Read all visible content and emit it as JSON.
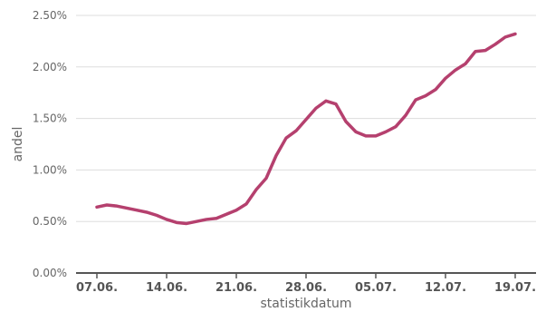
{
  "chart_data": {
    "type": "line",
    "xlabel": "statistikdatum",
    "ylabel": "andel",
    "ylim": [
      0,
      0.025
    ],
    "yticks": [
      {
        "value": 0.0,
        "label": "0.00%"
      },
      {
        "value": 0.005,
        "label": "0.50%"
      },
      {
        "value": 0.01,
        "label": "1.00%"
      },
      {
        "value": 0.015,
        "label": "1.50%"
      },
      {
        "value": 0.02,
        "label": "2.00%"
      },
      {
        "value": 0.025,
        "label": "2.50%"
      }
    ],
    "xticks": [
      {
        "date": "2021-06-07",
        "label": "07.06."
      },
      {
        "date": "2021-06-14",
        "label": "14.06."
      },
      {
        "date": "2021-06-21",
        "label": "21.06."
      },
      {
        "date": "2021-06-28",
        "label": "28.06."
      },
      {
        "date": "2021-07-05",
        "label": "05.07."
      },
      {
        "date": "2021-07-12",
        "label": "12.07."
      },
      {
        "date": "2021-07-19",
        "label": "19.07."
      }
    ],
    "grid": "horizontal",
    "colors": {
      "line": "#b5406e",
      "grid": "#dddddd",
      "axis": "#555555"
    },
    "series": [
      {
        "x": [
          "2021-06-07",
          "2021-06-08",
          "2021-06-09",
          "2021-06-10",
          "2021-06-11",
          "2021-06-12",
          "2021-06-13",
          "2021-06-14",
          "2021-06-15",
          "2021-06-16",
          "2021-06-17",
          "2021-06-18",
          "2021-06-19",
          "2021-06-20",
          "2021-06-21",
          "2021-06-22",
          "2021-06-23",
          "2021-06-24",
          "2021-06-25",
          "2021-06-26",
          "2021-06-27",
          "2021-06-28",
          "2021-06-29",
          "2021-06-30",
          "2021-07-01",
          "2021-07-02",
          "2021-07-03",
          "2021-07-04",
          "2021-07-05",
          "2021-07-06",
          "2021-07-07",
          "2021-07-08",
          "2021-07-09",
          "2021-07-10",
          "2021-07-11",
          "2021-07-12",
          "2021-07-13",
          "2021-07-14",
          "2021-07-15",
          "2021-07-16",
          "2021-07-17",
          "2021-07-18",
          "2021-07-19"
        ],
        "values": [
          0.0064,
          0.0066,
          0.0065,
          0.0063,
          0.0061,
          0.0059,
          0.0056,
          0.0052,
          0.0049,
          0.0048,
          0.005,
          0.0052,
          0.0053,
          0.0057,
          0.0061,
          0.0067,
          0.0081,
          0.0092,
          0.0114,
          0.0131,
          0.0138,
          0.0149,
          0.016,
          0.0167,
          0.0164,
          0.0147,
          0.0137,
          0.0133,
          0.0133,
          0.0137,
          0.0142,
          0.0153,
          0.0168,
          0.0172,
          0.0178,
          0.0189,
          0.0197,
          0.0203,
          0.0215,
          0.0216,
          0.0222,
          0.0229,
          0.0232
        ]
      }
    ]
  }
}
